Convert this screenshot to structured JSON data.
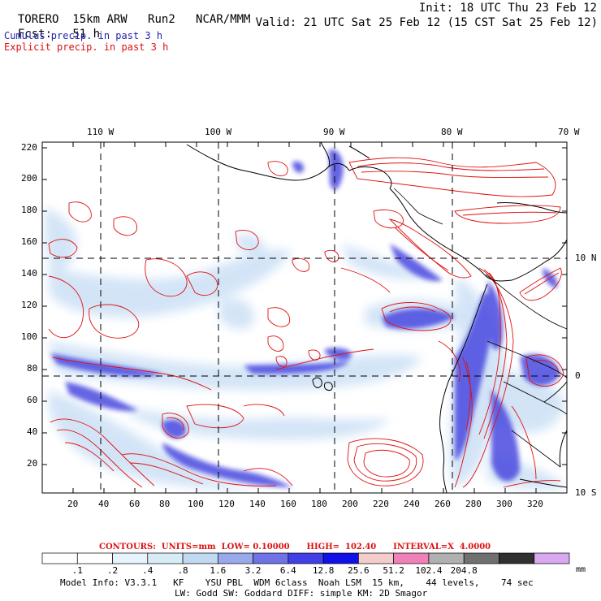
{
  "header": {
    "model": "TORERO",
    "resolution": "15km ARW",
    "run": "Run2",
    "org": "NCAR/MMM",
    "init": "Init: 18 UTC Thu 23 Feb 12",
    "fcst_label": "Fcst:",
    "fcst_value": "51 h",
    "valid": "Valid: 21 UTC Sat 25 Feb 12 (15 CST Sat 25 Feb 12)",
    "legend_cumulus": "Cumulus precip. in past 3 h",
    "legend_explicit": "Explicit precip. in past 3 h"
  },
  "map": {
    "lon_labels": [
      "110 W",
      "100 W",
      "90 W",
      "80 W",
      "70 W"
    ],
    "lat_labels": [
      "10 N",
      "0",
      "10 S"
    ],
    "y_ticks": [
      "220",
      "200",
      "180",
      "160",
      "140",
      "120",
      "100",
      "80",
      "60",
      "40",
      "20"
    ],
    "x_ticks": [
      "20",
      "40",
      "60",
      "80",
      "100",
      "120",
      "140",
      "160",
      "180",
      "200",
      "220",
      "240",
      "260",
      "280",
      "300",
      "320"
    ],
    "colors": {
      "cumulus": "#3b3bd6",
      "explicit": "#e01010",
      "coast": "#000000",
      "grid": "#000000"
    }
  },
  "contours": {
    "text": "CONTOURS:  UNITS=mm  LOW= 0.10000      HIGH=  102.40      INTERVAL=X  4.0000"
  },
  "colorbar": {
    "labels": [
      ".1",
      ".2",
      ".4",
      ".8",
      "1.6",
      "3.2",
      "6.4",
      "12.8",
      "25.6",
      "51.2",
      "102.4",
      "204.8"
    ],
    "unit": "mm",
    "colors": [
      "#ffffff",
      "#ffffff",
      "#e8f4fb",
      "#d8ecf8",
      "#c2d9f2",
      "#9aa8ec",
      "#6f73e6",
      "#4040e6",
      "#1010e8",
      "#f4cccc",
      "#f080b8",
      "#b0b0b0",
      "#707070",
      "#303030",
      "#d8a8f0"
    ]
  },
  "footer": {
    "line1": "Model Info: V3.3.1   KF    YSU PBL  WDM 6class  Noah LSM  15 km,    44 levels,    74 sec",
    "line2": "LW: Godd SW: Goddard DIFF: simple KM: 2D Smagor"
  }
}
